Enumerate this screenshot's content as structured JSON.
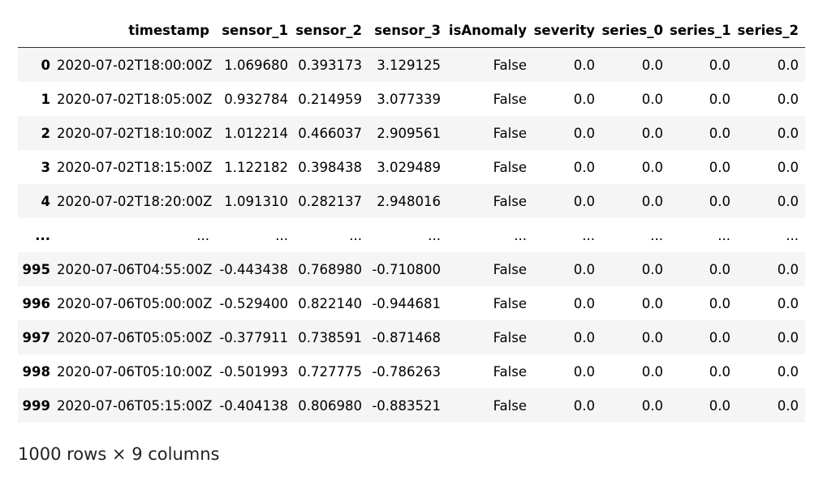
{
  "table": {
    "columns": [
      "timestamp",
      "sensor_1",
      "sensor_2",
      "sensor_3",
      "isAnomaly",
      "severity",
      "series_0",
      "series_1",
      "series_2"
    ],
    "rows": [
      {
        "index": "0",
        "cells": [
          "2020-07-02T18:00:00Z",
          "1.069680",
          "0.393173",
          "3.129125",
          "False",
          "0.0",
          "0.0",
          "0.0",
          "0.0"
        ]
      },
      {
        "index": "1",
        "cells": [
          "2020-07-02T18:05:00Z",
          "0.932784",
          "0.214959",
          "3.077339",
          "False",
          "0.0",
          "0.0",
          "0.0",
          "0.0"
        ]
      },
      {
        "index": "2",
        "cells": [
          "2020-07-02T18:10:00Z",
          "1.012214",
          "0.466037",
          "2.909561",
          "False",
          "0.0",
          "0.0",
          "0.0",
          "0.0"
        ]
      },
      {
        "index": "3",
        "cells": [
          "2020-07-02T18:15:00Z",
          "1.122182",
          "0.398438",
          "3.029489",
          "False",
          "0.0",
          "0.0",
          "0.0",
          "0.0"
        ]
      },
      {
        "index": "4",
        "cells": [
          "2020-07-02T18:20:00Z",
          "1.091310",
          "0.282137",
          "2.948016",
          "False",
          "0.0",
          "0.0",
          "0.0",
          "0.0"
        ]
      },
      {
        "index": "...",
        "cells": [
          "...",
          "...",
          "...",
          "...",
          "...",
          "...",
          "...",
          "...",
          "..."
        ]
      },
      {
        "index": "995",
        "cells": [
          "2020-07-06T04:55:00Z",
          "-0.443438",
          "0.768980",
          "-0.710800",
          "False",
          "0.0",
          "0.0",
          "0.0",
          "0.0"
        ]
      },
      {
        "index": "996",
        "cells": [
          "2020-07-06T05:00:00Z",
          "-0.529400",
          "0.822140",
          "-0.944681",
          "False",
          "0.0",
          "0.0",
          "0.0",
          "0.0"
        ]
      },
      {
        "index": "997",
        "cells": [
          "2020-07-06T05:05:00Z",
          "-0.377911",
          "0.738591",
          "-0.871468",
          "False",
          "0.0",
          "0.0",
          "0.0",
          "0.0"
        ]
      },
      {
        "index": "998",
        "cells": [
          "2020-07-06T05:10:00Z",
          "-0.501993",
          "0.727775",
          "-0.786263",
          "False",
          "0.0",
          "0.0",
          "0.0",
          "0.0"
        ]
      },
      {
        "index": "999",
        "cells": [
          "2020-07-06T05:15:00Z",
          "-0.404138",
          "0.806980",
          "-0.883521",
          "False",
          "0.0",
          "0.0",
          "0.0",
          "0.0"
        ]
      }
    ]
  },
  "footer": "1000 rows × 9 columns"
}
